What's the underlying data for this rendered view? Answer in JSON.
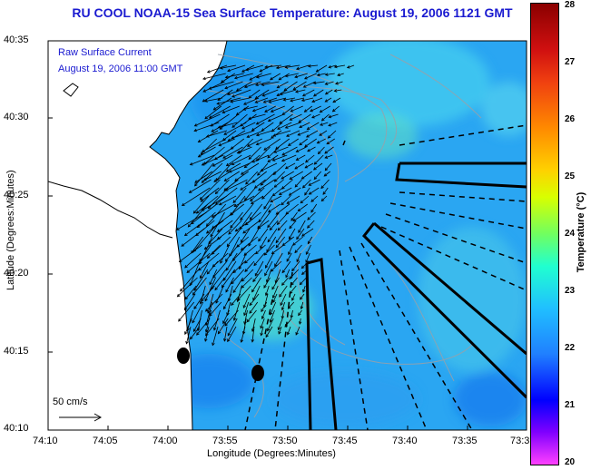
{
  "title": "RU COOL  NOAA-15  Sea Surface Temperature:  August 19, 2006 1121 GMT",
  "legend": {
    "line1": "Raw Surface Current",
    "line2": "August 19, 2006 11:00 GMT"
  },
  "scale_label": "50 cm/s",
  "axes": {
    "xlabel": "Longitude (Degrees:Minutes)",
    "ylabel": "Latitude (Degrees:Minutes)",
    "xticks": [
      "74:10",
      "74:05",
      "74:00",
      "73:55",
      "73:50",
      "73:45",
      "73:40",
      "73:35",
      "73:3"
    ],
    "yticks": [
      "40:35",
      "40:30",
      "40:25",
      "40:20",
      "40:15",
      "40:10"
    ]
  },
  "colorbar": {
    "label": "Temperature (°C)",
    "ticks": [
      "28",
      "27",
      "26",
      "25",
      "24",
      "23",
      "22",
      "21",
      "20"
    ],
    "range": [
      20,
      28
    ]
  },
  "colors": {
    "title": "#1a1ad0",
    "land": "#ffffff",
    "ocean_base": "#2aa6f2",
    "vectors": "#000000"
  }
}
